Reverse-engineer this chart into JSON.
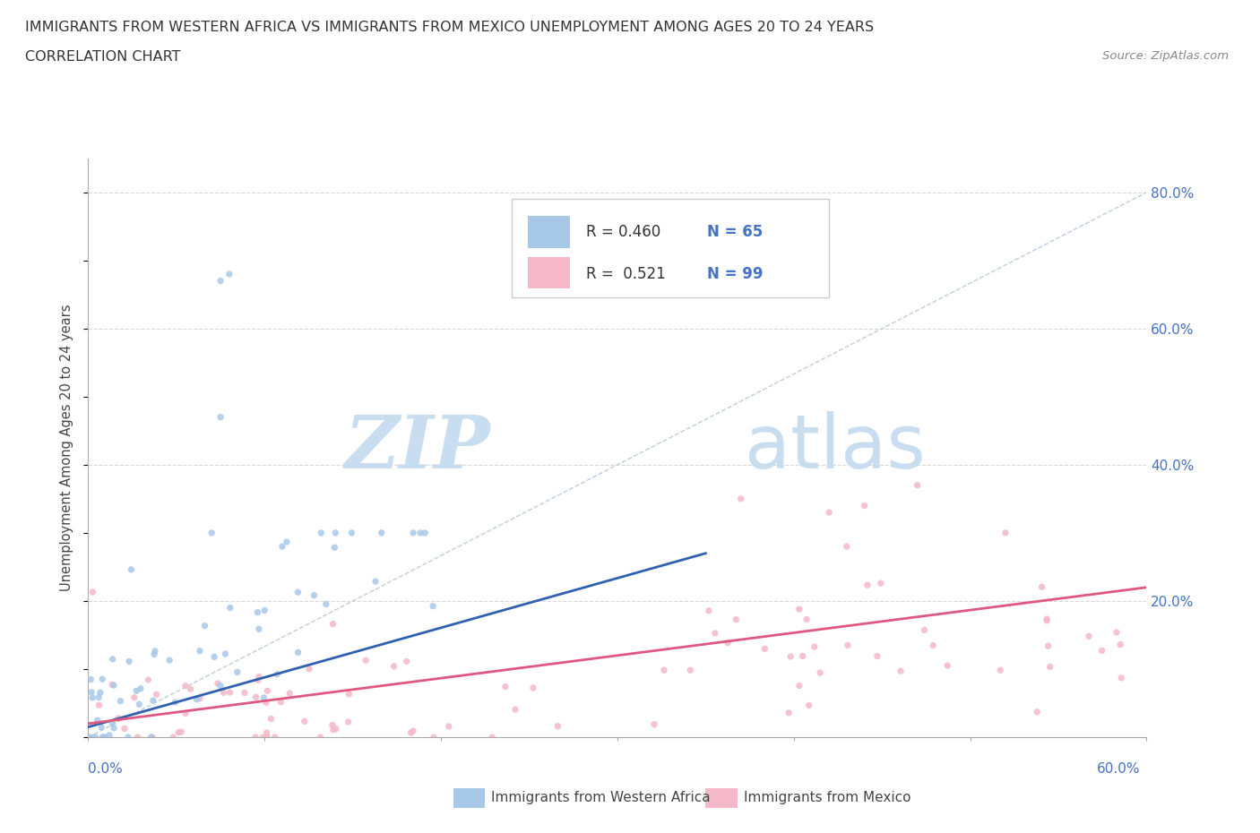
{
  "title_line1": "IMMIGRANTS FROM WESTERN AFRICA VS IMMIGRANTS FROM MEXICO UNEMPLOYMENT AMONG AGES 20 TO 24 YEARS",
  "title_line2": "CORRELATION CHART",
  "source_text": "Source: ZipAtlas.com",
  "ylabel": "Unemployment Among Ages 20 to 24 years",
  "legend_r1_prefix": "R = 0.460",
  "legend_r1_suffix": "N = 65",
  "legend_r2_prefix": "R =  0.521",
  "legend_r2_suffix": "N = 99",
  "legend_label1": "Immigrants from Western Africa",
  "legend_label2": "Immigrants from Mexico",
  "blue_color": "#a8c8e8",
  "pink_color": "#f4b8c8",
  "blue_line_color": "#3060b0",
  "pink_line_color": "#e05880",
  "diag_color": "#b8c8d8",
  "text_color_blue": "#4472c4",
  "watermark_zip": "#c8ddf0",
  "watermark_atlas": "#c8ddf0",
  "grid_color": "#d8d8d8",
  "xmin": 0.0,
  "xmax": 0.6,
  "ymin": 0.0,
  "ymax": 0.85,
  "right_y_ticks": [
    0.2,
    0.4,
    0.6,
    0.8
  ],
  "right_y_labels": [
    "20.0%",
    "40.0%",
    "60.0%",
    "80.0%"
  ]
}
